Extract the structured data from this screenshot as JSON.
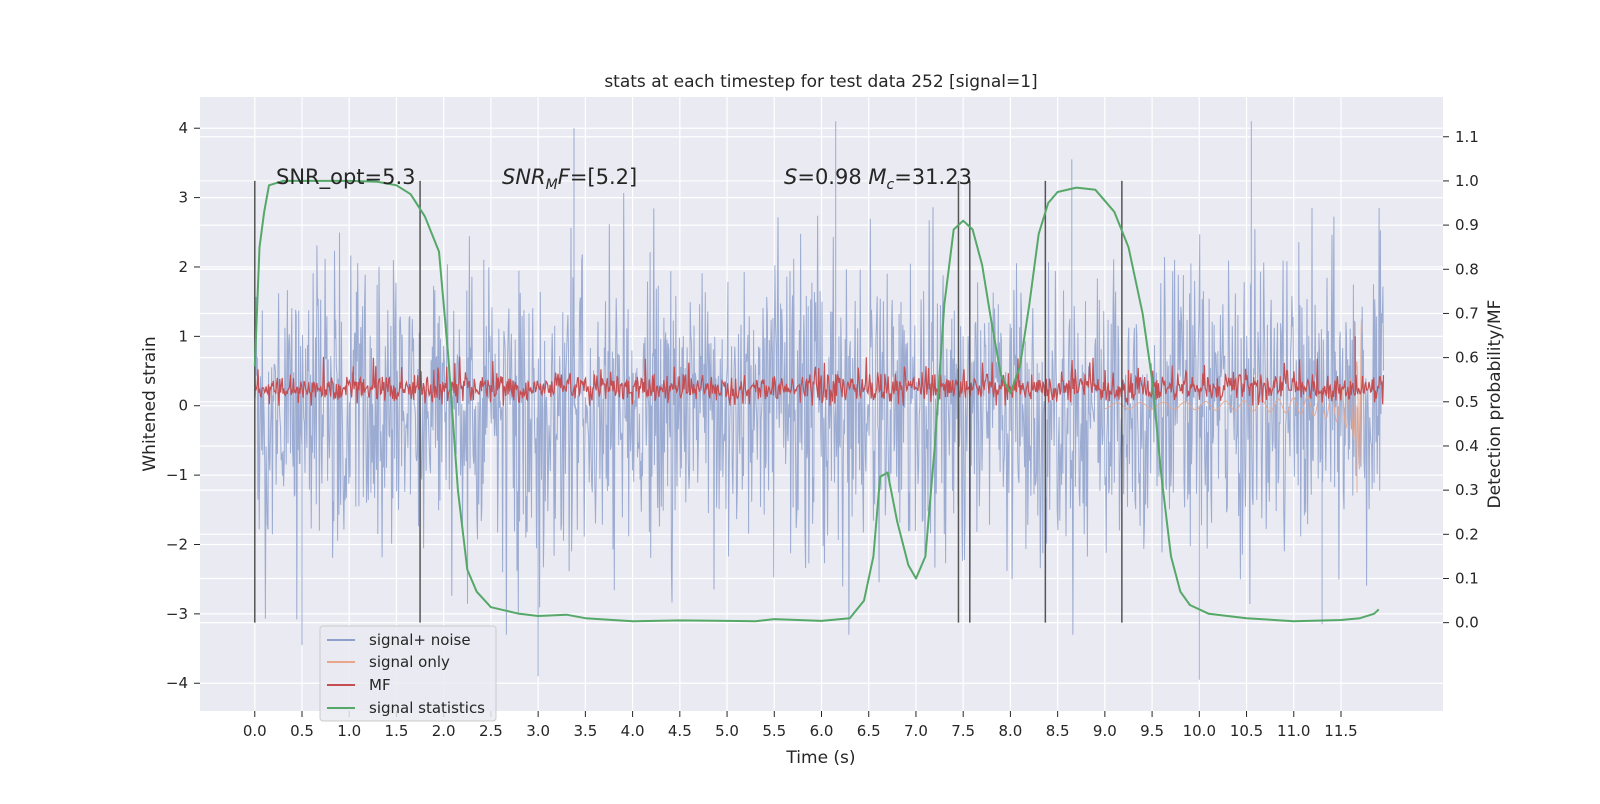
{
  "chart_data": {
    "type": "line",
    "title": "stats at each timestep for test data 252 [signal=1]",
    "xlabel": "Time (s)",
    "ylabel": "Whitened strain",
    "ylabel_right": "Detection probability/MF",
    "xlim": [
      -0.58,
      12.58
    ],
    "ylim": [
      -4.4,
      4.45
    ],
    "ylim_right": [
      -0.2,
      1.19
    ],
    "x_ticks": [
      0.0,
      0.5,
      1.0,
      1.5,
      2.0,
      2.5,
      3.0,
      3.5,
      4.0,
      4.5,
      5.0,
      5.5,
      6.0,
      6.5,
      7.0,
      7.5,
      8.0,
      8.5,
      9.0,
      9.5,
      10.0,
      10.5,
      11.0,
      11.5
    ],
    "x_tick_labels": [
      "0.0",
      "0.5",
      "1.0",
      "1.5",
      "2.0",
      "2.5",
      "3.0",
      "3.5",
      "4.0",
      "4.5",
      "5.0",
      "5.5",
      "6.0",
      "6.5",
      "7.0",
      "7.5",
      "8.0",
      "8.5",
      "9.0",
      "9.5",
      "10.0",
      "10.5",
      "11.0",
      "11.5"
    ],
    "y_ticks": [
      -4,
      -3,
      -2,
      -1,
      0,
      1,
      2,
      3,
      4
    ],
    "y_tick_labels": [
      "−4",
      "−3",
      "−2",
      "−1",
      "0",
      "1",
      "2",
      "3",
      "4"
    ],
    "y_right_ticks": [
      0.0,
      0.1,
      0.2,
      0.3,
      0.4,
      0.5,
      0.6,
      0.7,
      0.8,
      0.9,
      1.0,
      1.1
    ],
    "y_right_tick_labels": [
      "0.0",
      "0.1",
      "0.2",
      "0.3",
      "0.4",
      "0.5",
      "0.6",
      "0.7",
      "0.8",
      "0.9",
      "1.0",
      "1.1"
    ],
    "grid": true,
    "legend_position": "lower-left",
    "legend": [
      {
        "label": "signal+ noise",
        "color": "#8da0cb"
      },
      {
        "label": "signal only",
        "color": "#e8a68c"
      },
      {
        "label": "MF",
        "color": "#c44e52"
      },
      {
        "label": "signal statistics",
        "color": "#55a868"
      }
    ],
    "annotations": [
      {
        "text": "SNR_opt=5.3",
        "x": 0.2,
        "y": 3.2
      },
      {
        "text": "SNR_MF=[5.2]",
        "x": 2.6,
        "y": 3.2
      },
      {
        "text": "S=0.98   M_c=31.23",
        "x": 5.6,
        "y": 3.2
      }
    ],
    "vertical_markers": [
      0.0,
      1.75,
      7.45,
      7.57,
      8.37,
      9.18
    ],
    "series": [
      {
        "name": "signal+ noise",
        "axis": "left",
        "color": "#8da0cb",
        "kind": "noise",
        "x_range": [
          0.0,
          11.95
        ],
        "typical_range": [
          -2.4,
          2.4
        ],
        "peak_values": [
          [
            3.38,
            4.0
          ],
          [
            6.15,
            4.1
          ],
          [
            10.55,
            4.1
          ],
          [
            8.65,
            3.55
          ],
          [
            10.0,
            -3.95
          ],
          [
            3.0,
            -3.9
          ],
          [
            0.5,
            -3.45
          ],
          [
            11.3,
            -3.15
          ]
        ]
      },
      {
        "name": "signal only",
        "axis": "left",
        "color": "#e8a68c",
        "kind": "chirp",
        "x_range": [
          9.0,
          11.72
        ],
        "peak_values": [
          [
            11.65,
            1.2
          ],
          [
            11.67,
            -1.25
          ]
        ]
      },
      {
        "name": "MF",
        "axis": "left",
        "color": "#c44e52",
        "kind": "band",
        "x_range": [
          0.0,
          11.95
        ],
        "typical_range": [
          0.05,
          0.5
        ],
        "peak_values": [
          [
            11.65,
            1.0
          ]
        ]
      },
      {
        "name": "signal statistics",
        "axis": "right",
        "color": "#55a868",
        "x": [
          0.0,
          0.05,
          0.1,
          0.15,
          0.3,
          0.5,
          1.0,
          1.3,
          1.5,
          1.65,
          1.8,
          1.95,
          2.05,
          2.15,
          2.25,
          2.35,
          2.5,
          2.8,
          3.0,
          3.3,
          3.5,
          4.0,
          4.5,
          5.0,
          5.3,
          5.5,
          6.0,
          6.3,
          6.45,
          6.55,
          6.62,
          6.7,
          6.8,
          6.92,
          7.0,
          7.1,
          7.2,
          7.3,
          7.4,
          7.5,
          7.6,
          7.7,
          7.8,
          7.9,
          8.0,
          8.1,
          8.2,
          8.3,
          8.4,
          8.5,
          8.7,
          8.9,
          9.1,
          9.25,
          9.4,
          9.5,
          9.6,
          9.7,
          9.8,
          9.9,
          10.1,
          10.5,
          11.0,
          11.5,
          11.7,
          11.85,
          11.9
        ],
        "y": [
          0.58,
          0.85,
          0.93,
          0.99,
          1.0,
          1.0,
          1.0,
          0.998,
          0.99,
          0.97,
          0.92,
          0.84,
          0.6,
          0.3,
          0.12,
          0.07,
          0.035,
          0.02,
          0.015,
          0.018,
          0.01,
          0.003,
          0.005,
          0.004,
          0.003,
          0.008,
          0.004,
          0.01,
          0.05,
          0.15,
          0.33,
          0.34,
          0.23,
          0.13,
          0.1,
          0.15,
          0.4,
          0.72,
          0.89,
          0.91,
          0.89,
          0.81,
          0.68,
          0.56,
          0.52,
          0.58,
          0.72,
          0.88,
          0.95,
          0.975,
          0.985,
          0.98,
          0.93,
          0.85,
          0.7,
          0.55,
          0.33,
          0.15,
          0.07,
          0.04,
          0.02,
          0.01,
          0.003,
          0.006,
          0.01,
          0.02,
          0.03
        ]
      }
    ]
  }
}
